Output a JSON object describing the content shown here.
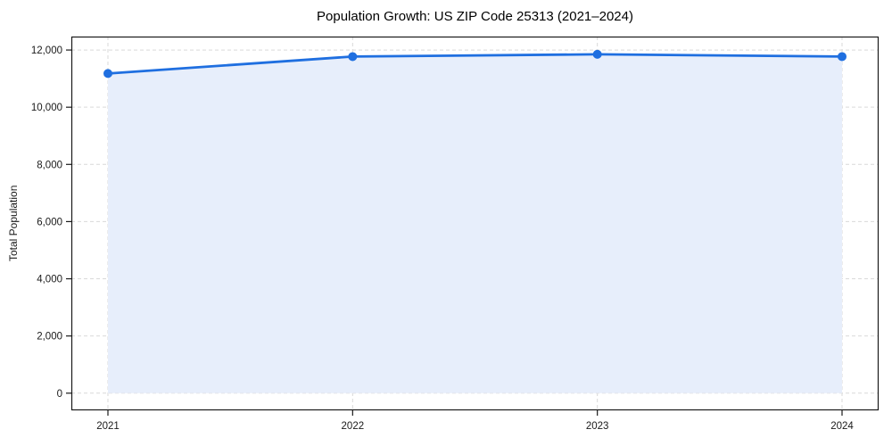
{
  "figure": {
    "background": "#ffffff"
  },
  "chart_data": {
    "type": "line",
    "title": "Population Growth: US ZIP Code 25313 (2021–2024)",
    "xlabel": "",
    "ylabel": "Total Population",
    "categories": [
      "2021",
      "2022",
      "2023",
      "2024"
    ],
    "series": [
      {
        "name": "Total Population",
        "values": [
          11180,
          11770,
          11850,
          11770
        ]
      }
    ],
    "yticks": [
      0,
      2000,
      4000,
      6000,
      8000,
      10000,
      12000
    ],
    "ytick_labels": [
      "0",
      "2,000",
      "4,000",
      "6,000",
      "8,000",
      "10,000",
      "12,000"
    ],
    "ylim": [
      -600,
      12470
    ],
    "grid": "dashed-both",
    "legend": "none",
    "area_fill": true,
    "marker": "circle",
    "colors": {
      "line": "#1f6fe0",
      "marker": "#1f6fe0",
      "area": "#e7eefb",
      "grid": "#d9d9d9",
      "axis": "#1a1a1a",
      "text": "#1a1a1a",
      "background": "#ffffff"
    }
  }
}
